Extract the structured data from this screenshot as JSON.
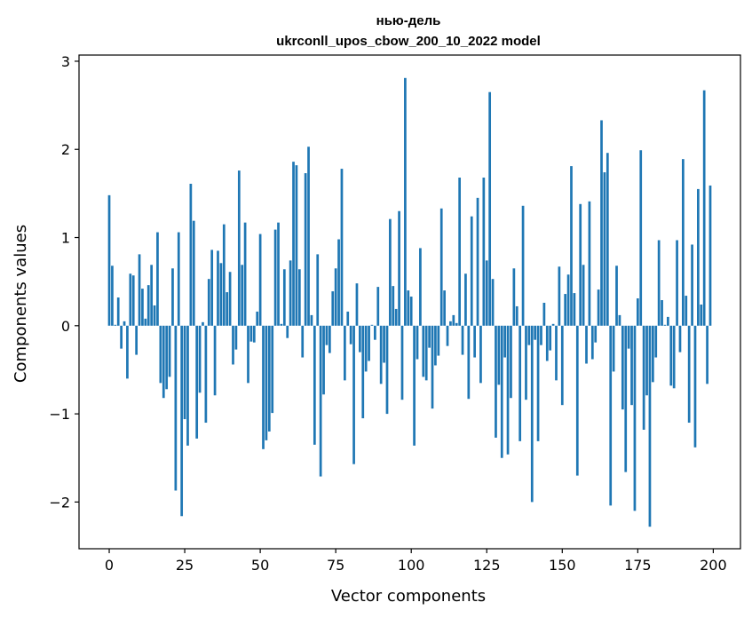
{
  "chart_data": {
    "type": "bar",
    "title_line1": "нью-дель",
    "title_line2": "ukrconll_upos_cbow_200_10_2022 model",
    "xlabel": "Vector components",
    "ylabel": "Components values",
    "xlim": [
      -10,
      209
    ],
    "ylim": [
      -2.53,
      3.07
    ],
    "xticks": [
      0,
      25,
      50,
      75,
      100,
      125,
      150,
      175,
      200
    ],
    "xtick_labels": [
      "0",
      "25",
      "50",
      "75",
      "100",
      "125",
      "150",
      "175",
      "200"
    ],
    "yticks": [
      -2,
      -1,
      0,
      1,
      2,
      3
    ],
    "ytick_labels": [
      "−2",
      "−1",
      "0",
      "1",
      "2",
      "3"
    ],
    "bar_color": "#1f77b4",
    "grid": false,
    "values": [
      1.48,
      0.68,
      0.01,
      0.32,
      -0.26,
      0.05,
      -0.6,
      0.59,
      0.57,
      -0.33,
      0.81,
      0.42,
      0.08,
      0.46,
      0.69,
      0.23,
      1.06,
      -0.65,
      -0.82,
      -0.72,
      -0.58,
      0.65,
      -1.87,
      1.06,
      -2.16,
      -1.06,
      -1.36,
      1.61,
      1.19,
      -1.28,
      -0.76,
      0.04,
      -1.1,
      0.53,
      0.86,
      -0.79,
      0.85,
      0.71,
      1.15,
      0.38,
      0.61,
      -0.44,
      -0.27,
      1.76,
      0.69,
      1.17,
      -0.65,
      -0.18,
      -0.19,
      0.16,
      1.04,
      -1.4,
      -1.3,
      -1.2,
      -0.99,
      1.09,
      1.17,
      0.02,
      0.64,
      -0.14,
      0.74,
      1.86,
      1.82,
      0.64,
      -0.36,
      1.73,
      2.03,
      0.12,
      -1.35,
      0.81,
      -1.71,
      -0.78,
      -0.22,
      -0.31,
      0.39,
      0.65,
      0.98,
      1.78,
      -0.62,
      0.16,
      -0.21,
      -1.57,
      0.48,
      -0.3,
      -1.05,
      -0.52,
      -0.4,
      0.01,
      -0.16,
      0.44,
      -0.66,
      -0.42,
      -1.0,
      1.21,
      0.45,
      0.19,
      1.3,
      -0.84,
      2.81,
      0.4,
      0.33,
      -1.36,
      -0.38,
      0.88,
      -0.58,
      -0.62,
      -0.25,
      -0.94,
      -0.45,
      -0.34,
      1.33,
      0.4,
      -0.23,
      0.05,
      0.12,
      0.03,
      1.68,
      -0.33,
      0.59,
      -0.83,
      1.24,
      -0.36,
      1.45,
      -0.65,
      1.68,
      0.74,
      2.65,
      0.53,
      -1.27,
      -0.67,
      -1.5,
      -0.36,
      -1.46,
      -0.82,
      0.65,
      0.22,
      -1.31,
      1.36,
      -0.84,
      -0.22,
      -2.0,
      -0.16,
      -1.31,
      -0.22,
      0.26,
      -0.4,
      -0.28,
      0.02,
      -0.62,
      0.67,
      -0.9,
      0.36,
      0.58,
      1.81,
      0.37,
      -1.7,
      1.38,
      0.69,
      -0.43,
      1.41,
      -0.38,
      -0.19,
      0.41,
      2.33,
      1.74,
      1.96,
      -2.04,
      -0.52,
      0.68,
      0.12,
      -0.95,
      -1.66,
      -0.26,
      -0.9,
      -2.1,
      0.31,
      1.99,
      -1.18,
      -0.79,
      -2.28,
      -0.64,
      -0.36,
      0.97,
      0.29,
      0.01,
      0.1,
      -0.68,
      -0.71,
      0.97,
      -0.3,
      1.89,
      0.34,
      -1.1,
      0.92,
      -1.38,
      1.55,
      0.24,
      2.67,
      -0.66,
      1.59
    ]
  }
}
